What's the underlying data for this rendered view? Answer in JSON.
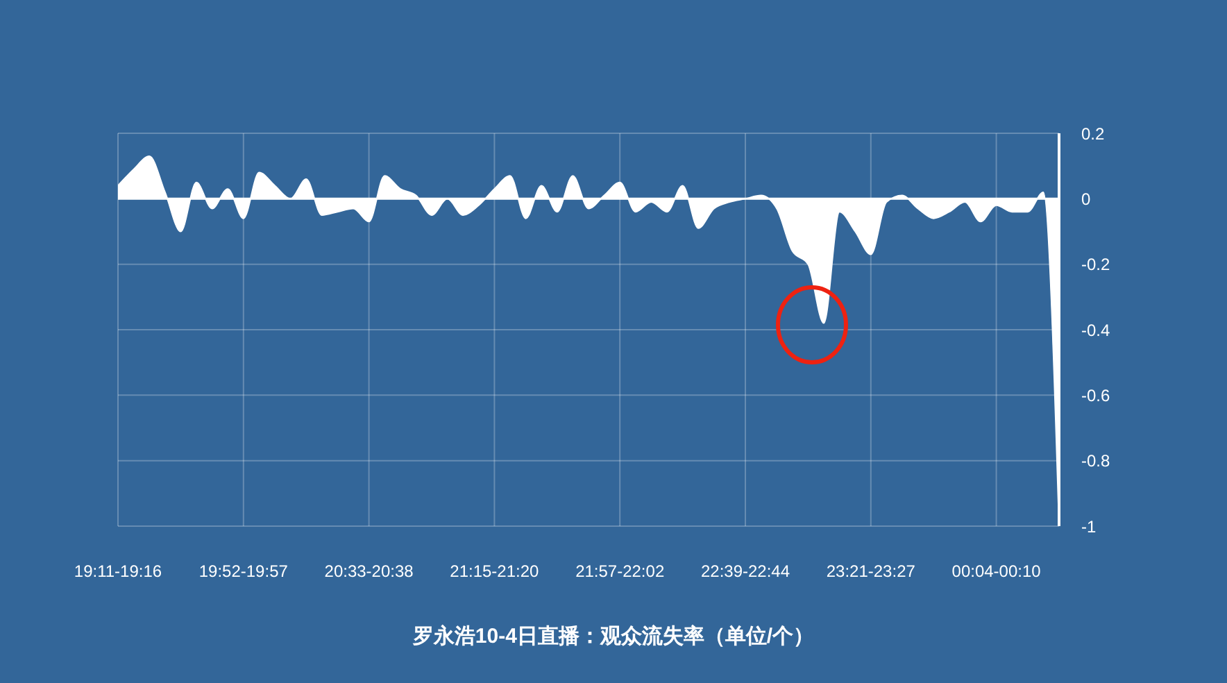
{
  "chart_data": {
    "type": "area",
    "title": "罗永浩10-4日直播：观众流失率（单位/个）",
    "categories": [
      "19:11-19:16",
      null,
      null,
      null,
      null,
      null,
      null,
      null,
      "19:52-19:57",
      null,
      null,
      null,
      null,
      null,
      null,
      null,
      "20:33-20:38",
      null,
      null,
      null,
      null,
      null,
      null,
      null,
      "21:15-21:20",
      null,
      null,
      null,
      null,
      null,
      null,
      null,
      "21:57-22:02",
      null,
      null,
      null,
      null,
      null,
      null,
      null,
      "22:39-22:44",
      null,
      null,
      null,
      null,
      null,
      null,
      null,
      "23:21-23:27",
      null,
      null,
      null,
      null,
      null,
      null,
      null,
      "00:04-00:10",
      null,
      null,
      null,
      null
    ],
    "values": [
      0.04,
      0.09,
      0.13,
      0.02,
      -0.1,
      0.05,
      -0.03,
      0.03,
      -0.06,
      0.08,
      0.04,
      0,
      0.06,
      -0.05,
      -0.04,
      -0.03,
      -0.07,
      0.07,
      0.03,
      0.01,
      -0.05,
      0,
      -0.05,
      -0.02,
      0.03,
      0.07,
      -0.06,
      0.04,
      -0.04,
      0.07,
      -0.03,
      0.01,
      0.05,
      -0.04,
      -0.01,
      -0.04,
      0.04,
      -0.09,
      -0.03,
      -0.01,
      0,
      0.01,
      -0.03,
      -0.16,
      -0.2,
      -0.38,
      -0.04,
      -0.1,
      -0.17,
      -0.01,
      0.01,
      -0.03,
      -0.06,
      -0.04,
      -0.01,
      -0.07,
      -0.02,
      -0.04,
      -0.04,
      0.02,
      -1
    ],
    "color": "#ffffff",
    "ylim": [
      -1,
      0.2
    ],
    "yticks": [
      0.2,
      0,
      -0.2,
      -0.4,
      -0.6,
      -0.8,
      -1
    ],
    "grid": true,
    "ref_lines": [
      {
        "axis": "y",
        "value": 0,
        "color": "#ffffff"
      }
    ]
  }
}
